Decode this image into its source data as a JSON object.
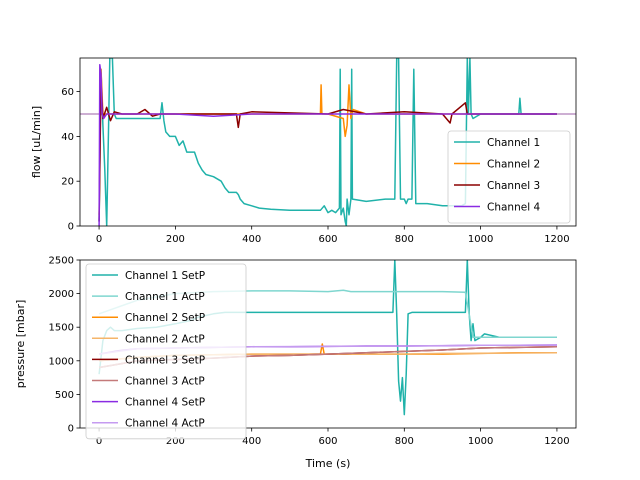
{
  "chart_data": [
    {
      "type": "line",
      "name": "flow",
      "ylabel": "flow [uL/min]",
      "xlabel": "",
      "xlim": [
        -50,
        1250
      ],
      "ylim": [
        0,
        75
      ],
      "xticks": [
        0,
        200,
        400,
        600,
        800,
        1000,
        1200
      ],
      "yticks": [
        0,
        20,
        40,
        60
      ],
      "grid": false,
      "legend_position": "lower-right",
      "reference_line": 50,
      "series": [
        {
          "name": "Channel 1",
          "color": "#20b2aa",
          "points": [
            [
              0,
              2
            ],
            [
              5,
              70
            ],
            [
              10,
              45
            ],
            [
              15,
              25
            ],
            [
              20,
              0
            ],
            [
              25,
              45
            ],
            [
              28,
              75
            ],
            [
              35,
              75
            ],
            [
              40,
              50
            ],
            [
              45,
              48
            ],
            [
              160,
              48
            ],
            [
              165,
              55
            ],
            [
              170,
              47
            ],
            [
              175,
              42
            ],
            [
              185,
              40
            ],
            [
              200,
              40
            ],
            [
              210,
              36
            ],
            [
              220,
              38
            ],
            [
              230,
              33
            ],
            [
              250,
              33
            ],
            [
              260,
              28
            ],
            [
              270,
              25
            ],
            [
              280,
              23
            ],
            [
              300,
              22
            ],
            [
              320,
              20
            ],
            [
              330,
              17
            ],
            [
              340,
              15
            ],
            [
              360,
              15
            ],
            [
              365,
              14
            ],
            [
              370,
              12
            ],
            [
              380,
              10
            ],
            [
              400,
              9
            ],
            [
              420,
              8
            ],
            [
              450,
              7.5
            ],
            [
              500,
              7
            ],
            [
              560,
              7
            ],
            [
              580,
              7
            ],
            [
              590,
              9
            ],
            [
              600,
              6
            ],
            [
              610,
              7
            ],
            [
              620,
              6
            ],
            [
              630,
              8
            ],
            [
              632,
              70
            ],
            [
              634,
              5
            ],
            [
              640,
              8
            ],
            [
              645,
              2
            ],
            [
              648,
              0
            ],
            [
              650,
              12
            ],
            [
              655,
              5
            ],
            [
              660,
              12
            ],
            [
              662,
              70
            ],
            [
              664,
              12
            ],
            [
              700,
              11
            ],
            [
              750,
              12
            ],
            [
              775,
              12
            ],
            [
              780,
              75
            ],
            [
              785,
              75
            ],
            [
              790,
              12
            ],
            [
              800,
              12
            ],
            [
              805,
              10
            ],
            [
              810,
              12
            ],
            [
              820,
              12
            ],
            [
              825,
              70
            ],
            [
              830,
              10
            ],
            [
              860,
              10
            ],
            [
              900,
              9
            ],
            [
              950,
              9
            ],
            [
              960,
              10
            ],
            [
              965,
              75
            ],
            [
              968,
              50
            ],
            [
              972,
              75
            ],
            [
              975,
              50
            ],
            [
              980,
              48
            ],
            [
              1000,
              50
            ],
            [
              1100,
              50
            ],
            [
              1103,
              57
            ],
            [
              1106,
              50
            ],
            [
              1200,
              50
            ]
          ]
        },
        {
          "name": "Channel 2",
          "color": "#ff8c00",
          "points": [
            [
              0,
              5
            ],
            [
              5,
              70
            ],
            [
              10,
              50
            ],
            [
              40,
              50
            ],
            [
              580,
              50
            ],
            [
              582,
              63
            ],
            [
              584,
              50
            ],
            [
              600,
              50
            ],
            [
              640,
              48
            ],
            [
              645,
              40
            ],
            [
              650,
              45
            ],
            [
              655,
              63
            ],
            [
              660,
              48
            ],
            [
              665,
              52
            ],
            [
              700,
              50
            ],
            [
              1200,
              50
            ]
          ]
        },
        {
          "name": "Channel 3",
          "color": "#8b0000",
          "points": [
            [
              0,
              2
            ],
            [
              5,
              65
            ],
            [
              10,
              48
            ],
            [
              20,
              53
            ],
            [
              30,
              47
            ],
            [
              40,
              51
            ],
            [
              60,
              50
            ],
            [
              100,
              50
            ],
            [
              120,
              52
            ],
            [
              140,
              49
            ],
            [
              160,
              50
            ],
            [
              200,
              50
            ],
            [
              360,
              50
            ],
            [
              365,
              44
            ],
            [
              370,
              50
            ],
            [
              400,
              51
            ],
            [
              600,
              50
            ],
            [
              640,
              52
            ],
            [
              700,
              50
            ],
            [
              800,
              51
            ],
            [
              900,
              50
            ],
            [
              920,
              46
            ],
            [
              925,
              50
            ],
            [
              960,
              55
            ],
            [
              965,
              50
            ],
            [
              1000,
              50
            ],
            [
              1200,
              50
            ]
          ]
        },
        {
          "name": "Channel 4",
          "color": "#8a2be2",
          "points": [
            [
              0,
              0
            ],
            [
              2,
              72
            ],
            [
              5,
              68
            ],
            [
              8,
              50
            ],
            [
              12,
              48
            ],
            [
              20,
              50
            ],
            [
              100,
              50
            ],
            [
              200,
              50
            ],
            [
              300,
              49
            ],
            [
              400,
              50
            ],
            [
              500,
              50
            ],
            [
              600,
              50
            ],
            [
              700,
              50
            ],
            [
              800,
              50
            ],
            [
              900,
              50
            ],
            [
              1000,
              50
            ],
            [
              1100,
              50
            ],
            [
              1200,
              50
            ]
          ]
        }
      ]
    },
    {
      "type": "line",
      "name": "pressure",
      "ylabel": "pressure [mbar]",
      "xlabel": "Time (s)",
      "xlim": [
        -50,
        1250
      ],
      "ylim": [
        0,
        2500
      ],
      "xticks": [
        0,
        200,
        400,
        600,
        800,
        1000,
        1200
      ],
      "yticks": [
        0,
        500,
        1000,
        1500,
        2000,
        2500
      ],
      "grid": false,
      "legend_position": "upper-left",
      "series": [
        {
          "name": "Channel 1 SetP",
          "color": "#20b2aa",
          "points": [
            [
              0,
              800
            ],
            [
              10,
              1300
            ],
            [
              20,
              1450
            ],
            [
              30,
              1500
            ],
            [
              40,
              1450
            ],
            [
              60,
              1450
            ],
            [
              100,
              1480
            ],
            [
              150,
              1500
            ],
            [
              200,
              1550
            ],
            [
              240,
              1600
            ],
            [
              260,
              1650
            ],
            [
              300,
              1700
            ],
            [
              330,
              1720
            ],
            [
              770,
              1720
            ],
            [
              775,
              2500
            ],
            [
              780,
              1700
            ],
            [
              785,
              700
            ],
            [
              790,
              400
            ],
            [
              795,
              750
            ],
            [
              800,
              200
            ],
            [
              805,
              800
            ],
            [
              810,
              1700
            ],
            [
              820,
              1720
            ],
            [
              960,
              1720
            ],
            [
              965,
              2500
            ],
            [
              970,
              1700
            ],
            [
              975,
              1300
            ],
            [
              980,
              1550
            ],
            [
              985,
              1300
            ],
            [
              1000,
              1350
            ],
            [
              1010,
              1400
            ],
            [
              1050,
              1350
            ],
            [
              1100,
              1350
            ],
            [
              1200,
              1350
            ]
          ]
        },
        {
          "name": "Channel 1 ActP",
          "color": "#7fd6cf",
          "points": [
            [
              0,
              1700
            ],
            [
              100,
              1900
            ],
            [
              200,
              2000
            ],
            [
              300,
              2030
            ],
            [
              400,
              2040
            ],
            [
              500,
              2040
            ],
            [
              600,
              2030
            ],
            [
              640,
              2050
            ],
            [
              660,
              2030
            ],
            [
              700,
              2030
            ],
            [
              800,
              2030
            ],
            [
              900,
              2030
            ],
            [
              960,
              2020
            ],
            [
              980,
              1350
            ],
            [
              1000,
              1350
            ],
            [
              1200,
              1350
            ]
          ]
        },
        {
          "name": "Channel 2 SetP",
          "color": "#ff8c00",
          "points": [
            [
              0,
              1000
            ],
            [
              100,
              1050
            ],
            [
              200,
              1080
            ],
            [
              300,
              1090
            ],
            [
              400,
              1100
            ],
            [
              500,
              1100
            ],
            [
              580,
              1100
            ],
            [
              585,
              1250
            ],
            [
              590,
              1100
            ],
            [
              600,
              1100
            ],
            [
              700,
              1100
            ],
            [
              800,
              1100
            ],
            [
              900,
              1100
            ],
            [
              1000,
              1110
            ],
            [
              1100,
              1120
            ],
            [
              1200,
              1120
            ]
          ]
        },
        {
          "name": "Channel 2 ActP",
          "color": "#f5b56a",
          "points": [
            [
              0,
              1000
            ],
            [
              100,
              1050
            ],
            [
              200,
              1080
            ],
            [
              300,
              1090
            ],
            [
              400,
              1100
            ],
            [
              500,
              1100
            ],
            [
              600,
              1100
            ],
            [
              700,
              1100
            ],
            [
              800,
              1100
            ],
            [
              900,
              1110
            ],
            [
              1000,
              1110
            ],
            [
              1200,
              1120
            ]
          ]
        },
        {
          "name": "Channel 3 SetP",
          "color": "#8b0000",
          "points": [
            [
              0,
              900
            ],
            [
              50,
              950
            ],
            [
              100,
              1000
            ],
            [
              200,
              1020
            ],
            [
              300,
              1040
            ],
            [
              400,
              1070
            ],
            [
              500,
              1080
            ],
            [
              600,
              1100
            ],
            [
              700,
              1120
            ],
            [
              800,
              1140
            ],
            [
              900,
              1160
            ],
            [
              1000,
              1190
            ],
            [
              1100,
              1200
            ],
            [
              1200,
              1210
            ]
          ]
        },
        {
          "name": "Channel 3 ActP",
          "color": "#c47a7a",
          "points": [
            [
              0,
              900
            ],
            [
              100,
              1000
            ],
            [
              200,
              1020
            ],
            [
              300,
              1040
            ],
            [
              400,
              1070
            ],
            [
              500,
              1080
            ],
            [
              600,
              1100
            ],
            [
              700,
              1120
            ],
            [
              800,
              1140
            ],
            [
              900,
              1160
            ],
            [
              1000,
              1190
            ],
            [
              1200,
              1210
            ]
          ]
        },
        {
          "name": "Channel 4 SetP",
          "color": "#8a2be2",
          "points": [
            [
              0,
              1100
            ],
            [
              50,
              1150
            ],
            [
              100,
              1180
            ],
            [
              200,
              1190
            ],
            [
              300,
              1200
            ],
            [
              400,
              1210
            ],
            [
              500,
              1210
            ],
            [
              600,
              1215
            ],
            [
              700,
              1220
            ],
            [
              800,
              1220
            ],
            [
              900,
              1225
            ],
            [
              1000,
              1230
            ],
            [
              1100,
              1230
            ],
            [
              1200,
              1235
            ]
          ]
        },
        {
          "name": "Channel 4 ActP",
          "color": "#c59bf0",
          "points": [
            [
              0,
              1100
            ],
            [
              100,
              1180
            ],
            [
              200,
              1190
            ],
            [
              400,
              1210
            ],
            [
              600,
              1215
            ],
            [
              800,
              1220
            ],
            [
              1000,
              1230
            ],
            [
              1200,
              1235
            ]
          ]
        }
      ]
    }
  ]
}
